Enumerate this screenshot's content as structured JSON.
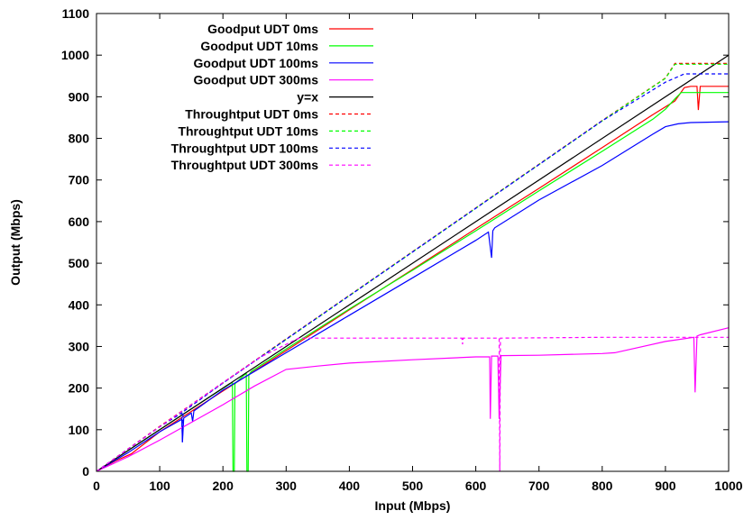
{
  "chart_data": {
    "type": "line",
    "title": "",
    "xlabel": "Input (Mbps)",
    "ylabel": "Output (Mbps)",
    "xlim": [
      0,
      1000
    ],
    "ylim": [
      0,
      1100
    ],
    "xticks": [
      0,
      100,
      200,
      300,
      400,
      500,
      600,
      700,
      800,
      900,
      1000
    ],
    "yticks": [
      0,
      100,
      200,
      300,
      400,
      500,
      600,
      700,
      800,
      900,
      1000,
      1100
    ],
    "grid": false,
    "legend_position": "top-left",
    "series": [
      {
        "name": "Goodput UDT 0ms",
        "color": "#ff0000",
        "dash": "solid",
        "x": [
          0,
          30,
          55,
          100,
          200,
          300,
          400,
          500,
          600,
          700,
          800,
          880,
          915,
          930,
          940,
          945,
          950,
          952,
          955,
          965,
          975,
          985,
          1000
        ],
        "y": [
          0,
          25,
          42,
          95,
          193,
          290,
          388,
          485,
          583,
          680,
          778,
          857,
          890,
          922,
          925,
          925,
          925,
          868,
          925,
          925,
          925,
          925,
          925
        ]
      },
      {
        "name": "Goodput UDT 10ms",
        "color": "#00ff00",
        "dash": "solid",
        "x": [
          0,
          50,
          100,
          150,
          215,
          216,
          218,
          219,
          222,
          237,
          238,
          240,
          241,
          245,
          300,
          400,
          500,
          600,
          700,
          800,
          880,
          900,
          915,
          925,
          1000
        ],
        "y": [
          0,
          50,
          100,
          150,
          214,
          0,
          0,
          210,
          215,
          236,
          0,
          0,
          232,
          240,
          294,
          390,
          483,
          578,
          674,
          769,
          846,
          870,
          895,
          910,
          910
        ]
      },
      {
        "name": "Goodput UDT 100ms",
        "color": "#0000ff",
        "dash": "solid",
        "x": [
          0,
          50,
          100,
          135,
          136,
          138,
          150,
          152,
          154,
          200,
          300,
          400,
          500,
          600,
          620,
          625,
          627,
          630,
          700,
          800,
          880,
          900,
          920,
          940,
          1000
        ],
        "y": [
          0,
          45,
          95,
          125,
          70,
          128,
          140,
          120,
          145,
          195,
          285,
          375,
          465,
          555,
          575,
          513,
          578,
          585,
          652,
          735,
          810,
          828,
          835,
          838,
          840
        ]
      },
      {
        "name": "Goodput UDT 300ms",
        "color": "#ff00ff",
        "dash": "solid",
        "x": [
          0,
          50,
          100,
          200,
          250,
          300,
          350,
          400,
          500,
          600,
          622,
          623,
          625,
          630,
          635,
          637,
          640,
          700,
          800,
          820,
          900,
          945,
          947,
          950,
          955,
          1000
        ],
        "y": [
          0,
          35,
          75,
          160,
          205,
          245,
          253,
          260,
          268,
          275,
          275,
          126,
          277,
          277,
          277,
          126,
          278,
          279,
          283,
          285,
          312,
          322,
          190,
          325,
          328,
          345
        ]
      },
      {
        "name": "y=x",
        "color": "#000000",
        "dash": "solid",
        "x": [
          0,
          1000
        ],
        "y": [
          0,
          1000
        ]
      },
      {
        "name": "Throughtput UDT 0ms",
        "color": "#ff0000",
        "dash": "dashed",
        "x": [
          0,
          100,
          200,
          300,
          400,
          500,
          600,
          700,
          800,
          900,
          915,
          1000
        ],
        "y": [
          0,
          108,
          213,
          318,
          423,
          528,
          633,
          738,
          843,
          945,
          980,
          980
        ]
      },
      {
        "name": "Throughtput UDT 10ms",
        "color": "#00ff00",
        "dash": "dashed",
        "x": [
          0,
          100,
          200,
          300,
          400,
          500,
          600,
          700,
          800,
          900,
          915,
          1000
        ],
        "y": [
          0,
          107,
          212,
          317,
          422,
          527,
          632,
          737,
          842,
          944,
          978,
          978
        ]
      },
      {
        "name": "Throughtput UDT 100ms",
        "color": "#0000ff",
        "dash": "dashed",
        "x": [
          0,
          100,
          135,
          136,
          137,
          200,
          300,
          400,
          500,
          600,
          700,
          800,
          900,
          930,
          1000
        ],
        "y": [
          0,
          107,
          140,
          70,
          143,
          212,
          317,
          422,
          527,
          632,
          737,
          842,
          935,
          955,
          955
        ]
      },
      {
        "name": "Throughtput UDT 300ms",
        "color": "#ff00ff",
        "dash": "dashed",
        "x": [
          0,
          100,
          200,
          260,
          300,
          320,
          500,
          578,
          579,
          580,
          600,
          637,
          638,
          639,
          800,
          1000
        ],
        "y": [
          0,
          107,
          213,
          275,
          305,
          320,
          320,
          320,
          305,
          320,
          320,
          320,
          0,
          320,
          322,
          322
        ]
      }
    ]
  }
}
